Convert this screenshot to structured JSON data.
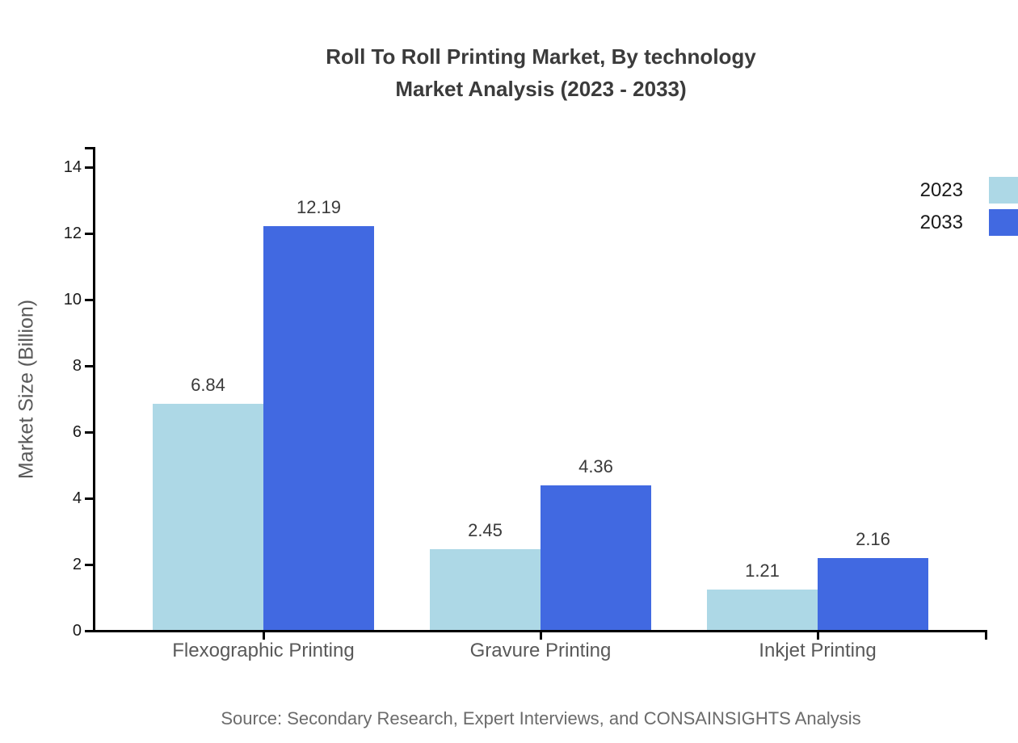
{
  "title": {
    "line1": "Roll To Roll Printing Market, By technology",
    "line2": "Market Analysis (2023 - 2033)"
  },
  "source": "Source: Secondary Research, Expert Interviews, and CONSAINSIGHTS Analysis",
  "palette": {
    "series_2023": "#ADD8E6",
    "series_2033": "#4169E1",
    "axis": "#000000",
    "title_text": "#3b3b3b",
    "tick_text": "#1a1a1a",
    "category_text": "#595959",
    "value_text": "#3a3a3a",
    "source_text": "#6b6b6b"
  },
  "chart_data": {
    "type": "bar",
    "title": "Roll To Roll Printing Market, By technology Market Analysis (2023 - 2033)",
    "categories": [
      "Flexographic Printing",
      "Gravure Printing",
      "Inkjet Printing"
    ],
    "series": [
      {
        "name": "2023",
        "color": "#ADD8E6",
        "values": [
          6.84,
          2.45,
          1.21
        ]
      },
      {
        "name": "2033",
        "color": "#4169E1",
        "values": [
          12.19,
          4.36,
          2.16
        ]
      }
    ],
    "xlabel": "",
    "ylabel": "Market Size (Billion)",
    "yticks": [
      0,
      2,
      4,
      6,
      8,
      10,
      12,
      14
    ],
    "ylim": [
      0,
      14.6
    ],
    "grid": false,
    "value_labels": true,
    "legend_position": "right-outside"
  }
}
